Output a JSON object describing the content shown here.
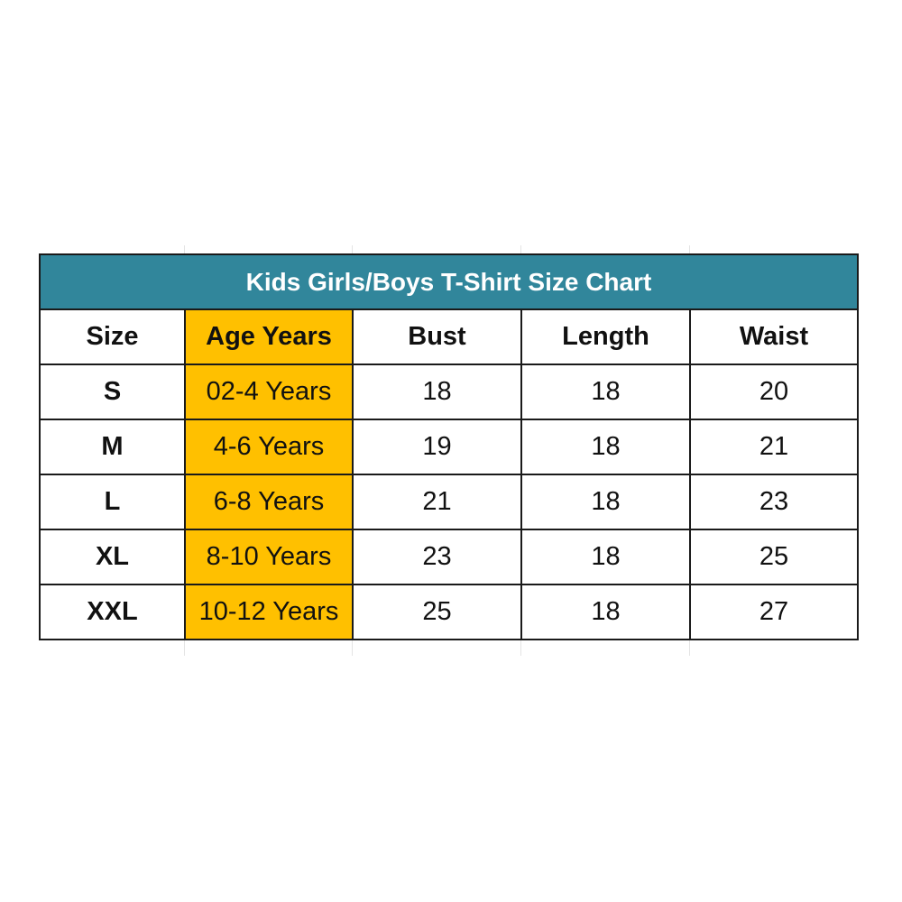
{
  "title": "Kids Girls/Boys T-Shirt Size Chart",
  "colors": {
    "title_bg": "#31869b",
    "age_column_bg": "#ffc000"
  },
  "headers": [
    "Size",
    "Age Years",
    "Bust",
    "Length",
    "Waist"
  ],
  "rows": [
    [
      "S",
      "02-4 Years",
      "18",
      "18",
      "20"
    ],
    [
      "M",
      "4-6 Years",
      "19",
      "18",
      "21"
    ],
    [
      "L",
      "6-8 Years",
      "21",
      "18",
      "23"
    ],
    [
      "XL",
      "8-10 Years",
      "23",
      "18",
      "25"
    ],
    [
      "XXL",
      "10-12 Years",
      "25",
      "18",
      "27"
    ]
  ]
}
